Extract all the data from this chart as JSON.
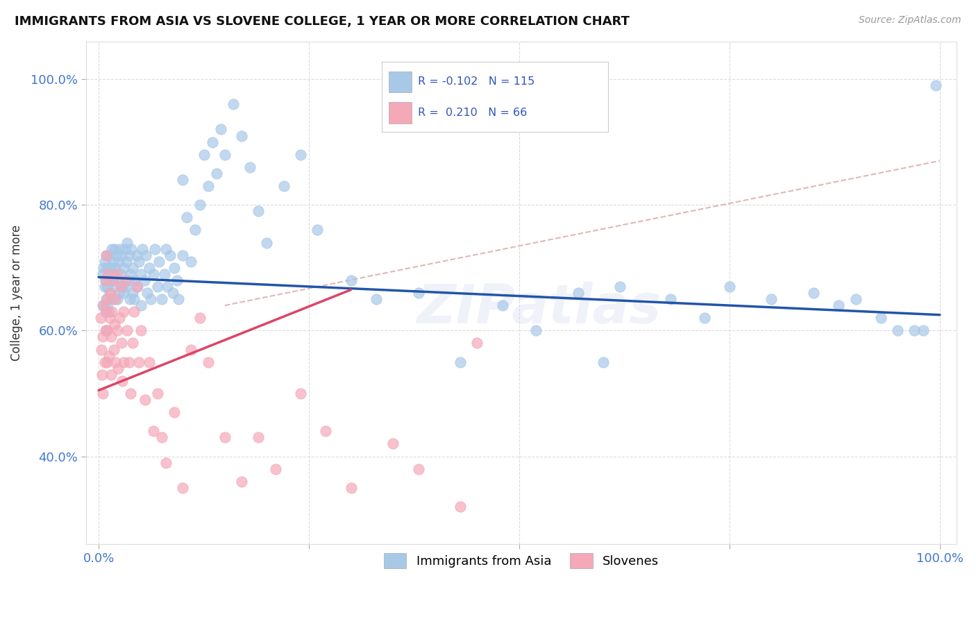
{
  "title": "IMMIGRANTS FROM ASIA VS SLOVENE COLLEGE, 1 YEAR OR MORE CORRELATION CHART",
  "source_text": "Source: ZipAtlas.com",
  "ylabel": "College, 1 year or more",
  "xlim": [
    -0.015,
    1.02
  ],
  "ylim": [
    0.26,
    1.06
  ],
  "x_ticks": [
    0.0,
    0.25,
    0.5,
    0.75,
    1.0
  ],
  "x_tick_labels": [
    "0.0%",
    "",
    "",
    "",
    "100.0%"
  ],
  "y_ticks": [
    0.4,
    0.6,
    0.8,
    1.0
  ],
  "y_tick_labels": [
    "40.0%",
    "60.0%",
    "80.0%",
    "100.0%"
  ],
  "watermark": "ZIPatlas",
  "legend_label_1": "Immigrants from Asia",
  "legend_label_2": "Slovenes",
  "r1": -0.102,
  "n1": 115,
  "r2": 0.21,
  "n2": 66,
  "color_blue": "#a8c8e8",
  "color_pink": "#f4a8b8",
  "color_blue_line": "#2255aa",
  "color_pink_line": "#dd4466",
  "color_dashed": "#ddaaaa",
  "blue_line_x0": 0.0,
  "blue_line_x1": 1.0,
  "blue_line_y0": 0.685,
  "blue_line_y1": 0.625,
  "pink_line_x0": 0.0,
  "pink_line_x1": 0.3,
  "pink_line_y0": 0.505,
  "pink_line_y1": 0.665,
  "dashed_line_x0": 0.15,
  "dashed_line_x1": 1.0,
  "dashed_line_y0": 0.64,
  "dashed_line_y1": 0.87,
  "blue_x": [
    0.005,
    0.005,
    0.006,
    0.007,
    0.007,
    0.008,
    0.008,
    0.009,
    0.009,
    0.01,
    0.01,
    0.01,
    0.01,
    0.012,
    0.012,
    0.013,
    0.013,
    0.015,
    0.015,
    0.016,
    0.016,
    0.017,
    0.018,
    0.018,
    0.019,
    0.02,
    0.02,
    0.021,
    0.022,
    0.023,
    0.024,
    0.025,
    0.025,
    0.026,
    0.027,
    0.028,
    0.03,
    0.03,
    0.031,
    0.032,
    0.033,
    0.034,
    0.035,
    0.036,
    0.037,
    0.038,
    0.039,
    0.04,
    0.04,
    0.042,
    0.043,
    0.045,
    0.046,
    0.048,
    0.05,
    0.05,
    0.052,
    0.054,
    0.056,
    0.058,
    0.06,
    0.062,
    0.065,
    0.067,
    0.07,
    0.072,
    0.075,
    0.078,
    0.08,
    0.082,
    0.085,
    0.088,
    0.09,
    0.093,
    0.095,
    0.1,
    0.1,
    0.105,
    0.11,
    0.115,
    0.12,
    0.125,
    0.13,
    0.135,
    0.14,
    0.145,
    0.15,
    0.16,
    0.17,
    0.18,
    0.19,
    0.2,
    0.22,
    0.24,
    0.26,
    0.3,
    0.33,
    0.38,
    0.43,
    0.48,
    0.52,
    0.57,
    0.6,
    0.62,
    0.68,
    0.72,
    0.75,
    0.8,
    0.85,
    0.88,
    0.9,
    0.93,
    0.95,
    0.97,
    0.98,
    0.995
  ],
  "blue_y": [
    0.69,
    0.64,
    0.7,
    0.67,
    0.71,
    0.63,
    0.68,
    0.65,
    0.72,
    0.6,
    0.64,
    0.67,
    0.7,
    0.63,
    0.68,
    0.66,
    0.72,
    0.65,
    0.7,
    0.68,
    0.73,
    0.71,
    0.65,
    0.69,
    0.73,
    0.67,
    0.7,
    0.72,
    0.65,
    0.68,
    0.71,
    0.66,
    0.73,
    0.69,
    0.72,
    0.67,
    0.66,
    0.7,
    0.73,
    0.67,
    0.71,
    0.74,
    0.68,
    0.72,
    0.65,
    0.69,
    0.73,
    0.66,
    0.7,
    0.65,
    0.68,
    0.72,
    0.67,
    0.71,
    0.64,
    0.69,
    0.73,
    0.68,
    0.72,
    0.66,
    0.7,
    0.65,
    0.69,
    0.73,
    0.67,
    0.71,
    0.65,
    0.69,
    0.73,
    0.67,
    0.72,
    0.66,
    0.7,
    0.68,
    0.65,
    0.72,
    0.84,
    0.78,
    0.71,
    0.76,
    0.8,
    0.88,
    0.83,
    0.9,
    0.85,
    0.92,
    0.88,
    0.96,
    0.91,
    0.86,
    0.79,
    0.74,
    0.83,
    0.88,
    0.76,
    0.68,
    0.65,
    0.66,
    0.55,
    0.64,
    0.6,
    0.66,
    0.55,
    0.67,
    0.65,
    0.62,
    0.67,
    0.65,
    0.66,
    0.64,
    0.65,
    0.62,
    0.6,
    0.6,
    0.6,
    0.99
  ],
  "pink_x": [
    0.002,
    0.003,
    0.004,
    0.005,
    0.005,
    0.006,
    0.007,
    0.008,
    0.008,
    0.009,
    0.009,
    0.01,
    0.01,
    0.01,
    0.011,
    0.012,
    0.013,
    0.014,
    0.015,
    0.015,
    0.016,
    0.017,
    0.018,
    0.019,
    0.02,
    0.02,
    0.021,
    0.022,
    0.023,
    0.025,
    0.026,
    0.027,
    0.028,
    0.03,
    0.03,
    0.032,
    0.034,
    0.036,
    0.038,
    0.04,
    0.042,
    0.045,
    0.048,
    0.05,
    0.055,
    0.06,
    0.065,
    0.07,
    0.075,
    0.08,
    0.09,
    0.1,
    0.11,
    0.12,
    0.13,
    0.15,
    0.17,
    0.19,
    0.21,
    0.24,
    0.27,
    0.3,
    0.35,
    0.38,
    0.43,
    0.45
  ],
  "pink_y": [
    0.62,
    0.57,
    0.53,
    0.5,
    0.59,
    0.64,
    0.55,
    0.68,
    0.6,
    0.63,
    0.72,
    0.55,
    0.6,
    0.65,
    0.69,
    0.56,
    0.62,
    0.66,
    0.59,
    0.53,
    0.63,
    0.68,
    0.57,
    0.61,
    0.55,
    0.65,
    0.69,
    0.6,
    0.54,
    0.62,
    0.67,
    0.58,
    0.52,
    0.55,
    0.63,
    0.68,
    0.6,
    0.55,
    0.5,
    0.58,
    0.63,
    0.67,
    0.55,
    0.6,
    0.49,
    0.55,
    0.44,
    0.5,
    0.43,
    0.39,
    0.47,
    0.35,
    0.57,
    0.62,
    0.55,
    0.43,
    0.36,
    0.43,
    0.38,
    0.5,
    0.44,
    0.35,
    0.42,
    0.38,
    0.32,
    0.58
  ]
}
